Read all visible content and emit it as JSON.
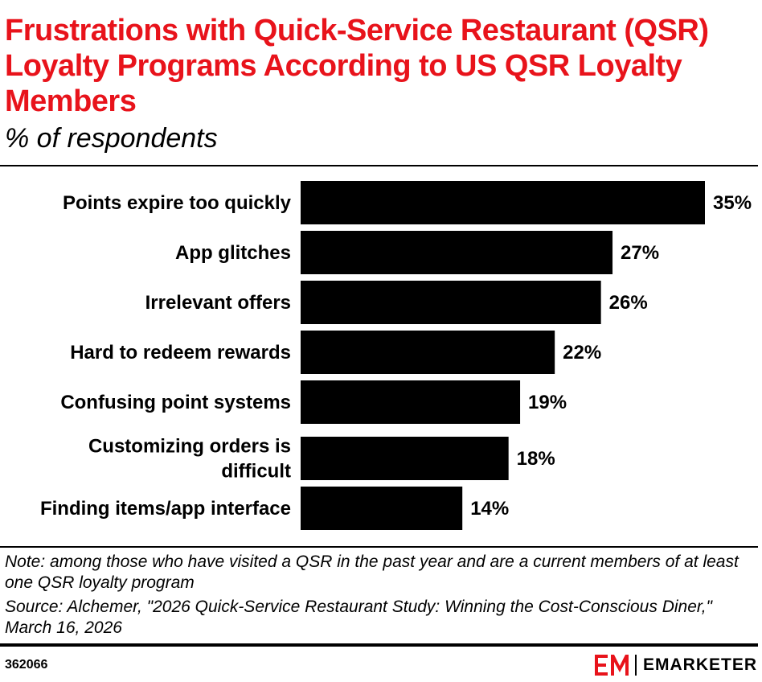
{
  "header": {
    "title": "Frustrations with Quick-Service Restaurant (QSR) Loyalty Programs According to US QSR Loyalty Members",
    "subtitle": "% of respondents"
  },
  "chart_data": {
    "type": "bar",
    "orientation": "horizontal",
    "categories": [
      [
        "Points expire too quickly"
      ],
      [
        "App glitches"
      ],
      [
        "Irrelevant offers"
      ],
      [
        "Hard to redeem rewards"
      ],
      [
        "Confusing point systems"
      ],
      [
        "Customizing orders is",
        "difficult"
      ],
      [
        "Finding items/app interface"
      ]
    ],
    "values": [
      35,
      27,
      26,
      22,
      19,
      18,
      14
    ],
    "value_labels": [
      "35%",
      "27%",
      "26%",
      "22%",
      "19%",
      "18%",
      "14%"
    ],
    "bar_color": "#000000",
    "xlim": [
      0,
      35
    ],
    "grid": false,
    "legend": false
  },
  "footer": {
    "note": "Note: among those who have visited a QSR in the past year and are a current members of at least one QSR loyalty program",
    "source": "Source: Alchemer, \"2026 Quick-Service Restaurant Study: Winning the Cost-Conscious Diner,\" March 16, 2026",
    "chart_id": "362066",
    "brand_name": "EMARKETER",
    "brand_logo_icon": "em-logo-icon",
    "brand_color": "#e8131b",
    "title_color": "#e8131b"
  }
}
